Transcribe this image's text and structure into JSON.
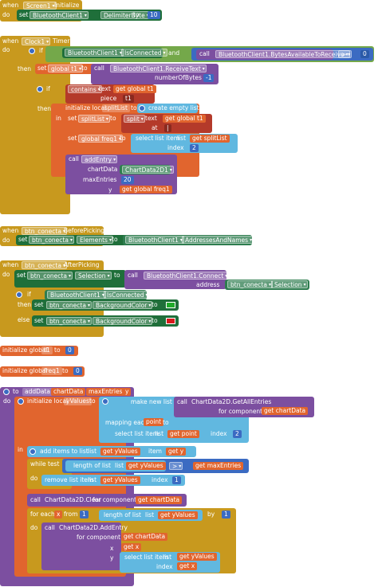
{
  "kw": {
    "when": "when",
    "do": "do",
    "call": "call",
    "set": "set",
    "to": "to",
    "if": "if",
    "then": "then",
    "else": "else",
    "get": "get",
    "in": "in",
    "at": "at",
    "index": "index",
    "item": "item",
    "piece": "piece",
    "text": "text",
    "list": "list",
    "and": "and",
    "while": "while",
    "test": "test",
    "from": "from",
    "by": "by",
    "x": "x",
    "y": "y",
    "for_component": "for component",
    "for_each": "for each",
    "make_new_list_from": "make new list from",
    "mapping_each": "mapping each",
    "select_list_item": "select list item",
    "length_of_list": "length of list",
    "remove_list_item": "remove list item",
    "add_items_to_list": "add items to list",
    "create_empty_list": "create empty list",
    "contains": "contains",
    "split": "split",
    "initialize_local": "initialize local",
    "initialize_global": "initialize global",
    "chartData": "chartData",
    "maxEntries": "maxEntries",
    "numberOfBytes": "numberOfBytes",
    "address": "address",
    "addEntry": "addEntry",
    "yValues": "yValues",
    "point": "point",
    "splitList": "splitList",
    "gt": ">"
  },
  "block1": {
    "component": "Screen1",
    "event": "Initialize",
    "target": "BluetoothClient1",
    "property": "DelimiterByte",
    "value": "10"
  },
  "block2": {
    "component": "Clock1",
    "event": "Timer",
    "bt": "BluetoothClient1",
    "isconnected": "IsConnected",
    "bytes_avail": "BluetoothClient1.BytesAvailableToReceive",
    "zero": "0",
    "var_t1": "global t1",
    "receive_text": "BluetoothClient1.ReceiveText",
    "neg_one": "-1",
    "piece_val": "t1",
    "split_at_val": "|",
    "var_freq1": "global freq1",
    "index_two": "2",
    "chart_component": "ChartData2D1",
    "max_entries": "20"
  },
  "block3": {
    "component": "btn_conecta",
    "event": "BeforePicking",
    "property": "Elements",
    "src": "BluetoothClient1",
    "src_prop": "AddressesAndNames"
  },
  "block4": {
    "component": "btn_conecta",
    "event": "AfterPicking",
    "property": "Selection",
    "connect": "BluetoothClient1.Connect",
    "bg": "BackgroundColor",
    "color_on": "#1faa2a",
    "color_off": "#d7191c"
  },
  "globals": [
    {
      "name": "t1",
      "value": "0"
    },
    {
      "name": "freq1",
      "value": "0"
    }
  ],
  "proc": {
    "name": "addData",
    "getAll": "ChartData2D.GetAllEntries",
    "clear": "ChartData2D.Clear",
    "addEntry": "ChartData2D.AddEntry",
    "one": "1",
    "two": "2"
  }
}
